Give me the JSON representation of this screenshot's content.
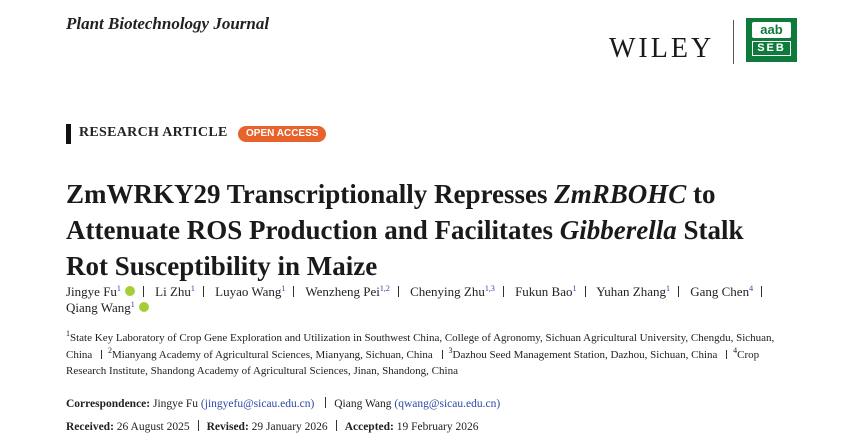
{
  "header": {
    "journal": "Plant Biotechnology Journal",
    "publisher": "WILEY",
    "logo_top": "aab",
    "logo_bottom": "SEB"
  },
  "article_type": "RESEARCH ARTICLE",
  "access": "OPEN ACCESS",
  "title": [
    {
      "text": "ZmWRKY29 Transcriptionally Represses "
    },
    {
      "text": "ZmRBOHC",
      "italic": true
    },
    {
      "text": " to Attenuate ROS Production and Facilitates "
    },
    {
      "text": "Gibberella",
      "italic": true
    },
    {
      "text": " Stalk Rot Susceptibility in Maize"
    }
  ],
  "authors": [
    {
      "name": "Jingye Fu",
      "aff": "1",
      "orcid": true
    },
    {
      "name": "Li Zhu",
      "aff": "1"
    },
    {
      "name": "Luyao Wang",
      "aff": "1"
    },
    {
      "name": "Wenzheng Pei",
      "aff": "1,2"
    },
    {
      "name": "Chenying Zhu",
      "aff": "1,3"
    },
    {
      "name": "Fukun Bao",
      "aff": "1"
    },
    {
      "name": "Yuhan Zhang",
      "aff": "1"
    },
    {
      "name": "Gang Chen",
      "aff": "4"
    },
    {
      "name": "Qiang Wang",
      "aff": "1",
      "orcid": true
    }
  ],
  "affiliations": [
    {
      "num": "1",
      "text": "State Key Laboratory of Crop Gene Exploration and Utilization in Southwest China, College of Agronomy, Sichuan Agricultural University, Chengdu, Sichuan, China"
    },
    {
      "num": "2",
      "text": "Mianyang Academy of Agricultural Sciences, Mianyang, Sichuan, China"
    },
    {
      "num": "3",
      "text": "Dazhou Seed Management Station, Dazhou, Sichuan, China"
    },
    {
      "num": "4",
      "text": "Crop Research Institute, Shandong Academy of Agricultural Sciences, Jinan, Shandong, China"
    }
  ],
  "correspondence": {
    "label": "Correspondence:",
    "entries": [
      {
        "name": "Jingye Fu",
        "email": "(jingyefu@sicau.edu.cn)"
      },
      {
        "name": "Qiang Wang",
        "email": "(qwang@sicau.edu.cn)"
      }
    ]
  },
  "dates": [
    {
      "label": "Received:",
      "value": "26 August 2025"
    },
    {
      "label": "Revised:",
      "value": "29 January 2026"
    },
    {
      "label": "Accepted:",
      "value": "19 February 2026"
    }
  ]
}
